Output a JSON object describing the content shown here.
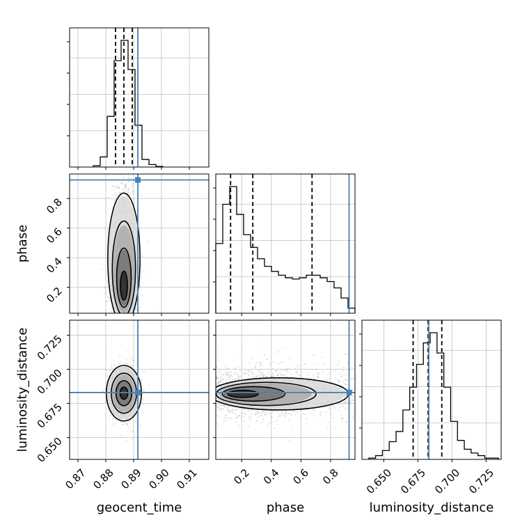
{
  "chart_data": {
    "type": "corner",
    "parameters": [
      "geocent_time",
      "phase",
      "luminosity_distance"
    ],
    "colors": {
      "truth": "#4682b4",
      "contour": "#000000",
      "grid": "#c0c0c0",
      "scatter": "#8c8c8c"
    },
    "truths": {
      "geocent_time": 0.8915,
      "phase": 0.925,
      "luminosity_distance": 0.683
    },
    "axes": {
      "geocent_time": {
        "label": "geocent_time",
        "lim": [
          0.867,
          0.917
        ],
        "ticks": [
          0.87,
          0.88,
          0.89,
          0.9,
          0.91
        ],
        "tick_labels": [
          "0.87",
          "0.88",
          "0.89",
          "0.90",
          "0.91"
        ]
      },
      "phase": {
        "label": "phase",
        "lim": [
          0.025,
          0.965
        ],
        "ticks": [
          0.2,
          0.4,
          0.6,
          0.8
        ],
        "tick_labels": [
          "0.2",
          "0.4",
          "0.6",
          "0.8"
        ]
      },
      "luminosity_distance": {
        "label": "luminosity_distance",
        "lim": [
          0.634,
          0.736
        ],
        "ticks": [
          0.65,
          0.675,
          0.7,
          0.725
        ],
        "tick_labels": [
          "0.650",
          "0.675",
          "0.700",
          "0.725"
        ]
      }
    },
    "marginals": [
      {
        "param": "geocent_time",
        "bin_edges": [
          0.8755,
          0.878,
          0.8805,
          0.883,
          0.8855,
          0.888,
          0.8905,
          0.893,
          0.8955,
          0.898,
          0.9005
        ],
        "counts": [
          0.01,
          0.08,
          0.4,
          0.84,
          1.0,
          0.77,
          0.33,
          0.06,
          0.02,
          0.005
        ],
        "quantiles": [
          0.8835,
          0.8865,
          0.8895
        ]
      },
      {
        "param": "phase",
        "bin_edges": [
          0.025,
          0.072,
          0.119,
          0.166,
          0.213,
          0.26,
          0.307,
          0.354,
          0.401,
          0.448,
          0.495,
          0.542,
          0.589,
          0.636,
          0.683,
          0.73,
          0.777,
          0.824,
          0.871,
          0.918,
          0.965
        ],
        "counts": [
          0.55,
          0.86,
          1.0,
          0.78,
          0.62,
          0.52,
          0.43,
          0.37,
          0.33,
          0.3,
          0.28,
          0.27,
          0.28,
          0.3,
          0.3,
          0.28,
          0.25,
          0.2,
          0.12,
          0.04
        ],
        "quantiles": [
          0.125,
          0.275,
          0.675
        ]
      },
      {
        "param": "luminosity_distance",
        "bin_edges": [
          0.639,
          0.644,
          0.649,
          0.654,
          0.659,
          0.664,
          0.669,
          0.674,
          0.679,
          0.684,
          0.689,
          0.694,
          0.699,
          0.704,
          0.709,
          0.714,
          0.719,
          0.724,
          0.729,
          0.734
        ],
        "counts": [
          0.01,
          0.03,
          0.07,
          0.14,
          0.22,
          0.39,
          0.57,
          0.75,
          0.92,
          1.0,
          0.84,
          0.57,
          0.3,
          0.15,
          0.08,
          0.05,
          0.03,
          0.01,
          0.01
        ],
        "quantiles": [
          0.6715,
          0.6825,
          0.6925
        ]
      }
    ],
    "pair_density": [
      {
        "x": "geocent_time",
        "y": "phase",
        "mean": [
          0.8865,
          0.22
        ],
        "sd": [
          0.0023,
          0.11
        ],
        "peak": [
          0.8865,
          0.16
        ]
      },
      {
        "x": "geocent_time",
        "y": "luminosity_distance",
        "mean": [
          0.8865,
          0.6825
        ],
        "sd": [
          0.0024,
          0.0095
        ]
      },
      {
        "x": "phase",
        "y": "luminosity_distance",
        "mean": [
          0.3,
          0.683
        ],
        "sd": [
          0.22,
          0.0095
        ],
        "peak": [
          0.14,
          0.682
        ]
      }
    ],
    "grid": true,
    "legend": "none"
  }
}
